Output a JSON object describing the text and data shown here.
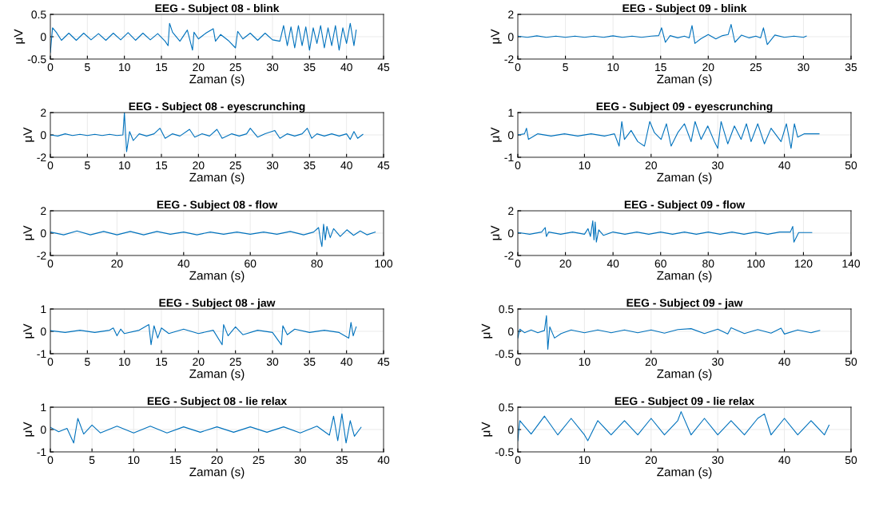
{
  "chart_data": [
    {
      "type": "line",
      "title": "EEG - Subject 08 - blink",
      "xlabel": "Zaman (s)",
      "ylabel": "μV",
      "color": "#0072bd",
      "grid": true,
      "xlim": [
        0,
        45
      ],
      "xticks": [
        0,
        5,
        10,
        15,
        20,
        25,
        30,
        35,
        40,
        45
      ],
      "ylim": [
        -0.5,
        0.5
      ],
      "yticks": [
        -0.5,
        0,
        0.5
      ],
      "x": [
        0,
        0.3,
        0.8,
        1.5,
        2.5,
        3.5,
        4.5,
        5.5,
        6.5,
        7.5,
        8.5,
        9.5,
        10.5,
        11.5,
        12.5,
        13.5,
        14.5,
        15.5,
        15.9,
        16.1,
        16.5,
        17.5,
        18.5,
        19.2,
        19.4,
        20,
        21,
        22,
        22.3,
        23,
        24,
        25,
        25.3,
        26,
        27,
        28,
        29,
        30,
        31,
        31.5,
        32,
        32.5,
        33,
        33.5,
        34,
        34.5,
        35,
        35.5,
        36,
        36.5,
        37,
        37.5,
        38,
        38.5,
        39,
        39.5,
        40,
        40.5,
        41,
        41.3
      ],
      "values": [
        -0.35,
        0.2,
        0.1,
        -0.08,
        0.08,
        -0.08,
        0.08,
        -0.07,
        0.07,
        -0.08,
        0.08,
        -0.07,
        0.09,
        -0.08,
        0.08,
        -0.07,
        0.07,
        -0.1,
        -0.2,
        0.3,
        0.1,
        -0.1,
        0.15,
        -0.3,
        0.1,
        -0.05,
        0.08,
        0.18,
        -0.1,
        0.05,
        -0.08,
        -0.25,
        0.12,
        -0.05,
        0.08,
        -0.08,
        0.08,
        -0.07,
        -0.1,
        0.25,
        -0.2,
        0.22,
        -0.25,
        0.25,
        -0.2,
        0.22,
        -0.3,
        0.2,
        -0.15,
        0.25,
        -0.25,
        0.2,
        -0.2,
        0.25,
        -0.3,
        0.2,
        -0.15,
        0.3,
        -0.2,
        0.15
      ]
    },
    {
      "type": "line",
      "title": "EEG - Subject 09 - blink",
      "xlabel": "Zaman (s)",
      "ylabel": "μV",
      "color": "#0072bd",
      "grid": true,
      "xlim": [
        0,
        35
      ],
      "xticks": [
        0,
        5,
        10,
        15,
        20,
        25,
        30,
        35
      ],
      "ylim": [
        -2,
        2
      ],
      "yticks": [
        -2,
        0,
        2
      ],
      "x": [
        0,
        1,
        2,
        3,
        4,
        5,
        6,
        7,
        8,
        9,
        10,
        11,
        12,
        13,
        14,
        14.8,
        15.1,
        15.5,
        16,
        16.8,
        17.5,
        18,
        18.3,
        18.6,
        19.2,
        20,
        20.8,
        21.5,
        22.1,
        22.4,
        22.8,
        23.5,
        24.3,
        25,
        25.5,
        25.8,
        26.2,
        27,
        28,
        29,
        30,
        30.3
      ],
      "values": [
        0.05,
        -0.05,
        0.08,
        -0.05,
        0.05,
        -0.05,
        0.05,
        -0.05,
        0.05,
        -0.05,
        0.08,
        -0.05,
        0.05,
        -0.05,
        0.05,
        0.1,
        0.8,
        -0.5,
        0.1,
        -0.1,
        0.05,
        -0.1,
        1.0,
        -0.6,
        -0.2,
        0.2,
        -0.2,
        0.1,
        0.2,
        1.1,
        -0.5,
        0.15,
        -0.1,
        0.05,
        -0.1,
        0.8,
        -0.7,
        0.15,
        -0.05,
        0.05,
        -0.05,
        0.05
      ]
    },
    {
      "type": "line",
      "title": "EEG - Subject 08 - eyescrunching",
      "xlabel": "Zaman (s)",
      "ylabel": "μV",
      "color": "#0072bd",
      "grid": true,
      "xlim": [
        0,
        45
      ],
      "xticks": [
        0,
        5,
        10,
        15,
        20,
        25,
        30,
        35,
        40,
        45
      ],
      "ylim": [
        -2,
        2
      ],
      "yticks": [
        -2,
        0,
        2
      ],
      "x": [
        0,
        1,
        2,
        3,
        4,
        5,
        6,
        7,
        8,
        9,
        9.8,
        10.0,
        10.3,
        10.7,
        11.2,
        12,
        13,
        14,
        14.8,
        15.5,
        16.5,
        17.5,
        18.8,
        19.5,
        20.5,
        21.5,
        22.5,
        23.2,
        24.5,
        25.5,
        26.5,
        27,
        28,
        29,
        30.3,
        31,
        32,
        33,
        34,
        34.7,
        35.3,
        36,
        37,
        38,
        39,
        40,
        40.5,
        41,
        41.5,
        42.2
      ],
      "values": [
        0,
        -0.1,
        0.1,
        -0.05,
        0.05,
        -0.05,
        0.05,
        -0.05,
        0.05,
        -0.05,
        0,
        2,
        -1.5,
        0.3,
        -0.5,
        0.1,
        -0.1,
        0.1,
        0.6,
        -0.3,
        0.1,
        -0.1,
        0.5,
        -0.2,
        0.1,
        -0.1,
        0.5,
        -0.3,
        0.1,
        -0.1,
        0.1,
        0.6,
        -0.2,
        0.1,
        0.4,
        -0.3,
        0.1,
        -0.1,
        0.1,
        0.6,
        -0.3,
        0.1,
        -0.1,
        0.1,
        -0.1,
        0.1,
        -0.4,
        0.3,
        -0.3,
        0.05
      ]
    },
    {
      "type": "line",
      "title": "EEG - Subject 09 - eyescrunching",
      "xlabel": "Zaman (s)",
      "ylabel": "μV",
      "color": "#0072bd",
      "grid": true,
      "xlim": [
        0,
        50
      ],
      "xticks": [
        0,
        10,
        20,
        30,
        40,
        50
      ],
      "ylim": [
        -1,
        1
      ],
      "yticks": [
        -1,
        0,
        1
      ],
      "x": [
        0,
        1,
        1.3,
        1.6,
        3,
        5,
        7,
        9,
        11,
        13,
        14.5,
        15.2,
        15.6,
        16,
        17,
        18,
        19,
        19.8,
        20.5,
        21.5,
        22.3,
        23,
        24,
        25,
        26,
        26.6,
        27.5,
        28.5,
        29.5,
        30,
        30.5,
        31.5,
        32.5,
        33.5,
        34.3,
        35,
        36,
        37,
        38,
        39.5,
        40.3,
        41,
        41.5,
        42,
        43,
        45.2
      ],
      "values": [
        0,
        0.05,
        0.3,
        -0.2,
        0.05,
        -0.05,
        0.05,
        -0.05,
        0.05,
        -0.05,
        0.05,
        -0.5,
        0.6,
        -0.2,
        0.2,
        -0.3,
        -0.5,
        0.6,
        0.1,
        -0.2,
        0.5,
        -0.5,
        0.1,
        0.5,
        -0.3,
        0.6,
        -0.2,
        0.4,
        -0.3,
        -0.6,
        0.6,
        -0.4,
        0.4,
        -0.2,
        0.5,
        -0.3,
        0.5,
        -0.4,
        0.3,
        -0.3,
        0.5,
        -0.6,
        0.5,
        -0.1,
        0.05,
        0.05
      ]
    },
    {
      "type": "line",
      "title": "EEG - Subject 08 - flow",
      "xlabel": "Zaman (s)",
      "ylabel": "μV",
      "color": "#0072bd",
      "grid": true,
      "xlim": [
        0,
        100
      ],
      "xticks": [
        0,
        20,
        40,
        60,
        80,
        100
      ],
      "ylim": [
        -2,
        2
      ],
      "yticks": [
        -2,
        0,
        2
      ],
      "x": [
        0,
        4,
        8,
        12,
        16,
        20,
        24,
        28,
        32,
        36,
        40,
        44,
        48,
        52,
        56,
        60,
        64,
        68,
        72,
        76,
        79,
        80.5,
        81,
        81.5,
        82,
        82.5,
        83,
        84,
        85,
        87,
        89,
        91,
        93,
        95,
        97.5
      ],
      "values": [
        0.1,
        -0.15,
        0.2,
        -0.15,
        0.15,
        -0.15,
        0.15,
        -0.15,
        0.15,
        -0.1,
        0.1,
        -0.15,
        0.1,
        -0.1,
        0.1,
        -0.1,
        0.1,
        -0.1,
        0.15,
        -0.15,
        0.1,
        0.5,
        -0.5,
        -1.2,
        0.8,
        -0.6,
        0.6,
        -0.4,
        0.4,
        -0.3,
        0.3,
        -0.2,
        0.2,
        -0.15,
        0.1
      ]
    },
    {
      "type": "line",
      "title": "EEG - Subject 09 - flow",
      "xlabel": "Zaman (s)",
      "ylabel": "μV",
      "color": "#0072bd",
      "grid": true,
      "xlim": [
        0,
        140
      ],
      "xticks": [
        0,
        20,
        40,
        60,
        80,
        100,
        120,
        140
      ],
      "ylim": [
        -2,
        2
      ],
      "yticks": [
        -2,
        0,
        2
      ],
      "x": [
        0,
        5,
        10,
        11.5,
        12,
        13,
        18,
        23,
        28,
        29.5,
        30.5,
        31.5,
        32,
        32.5,
        33,
        34,
        36,
        40,
        45,
        50,
        55,
        60,
        65,
        70,
        75,
        80,
        85,
        90,
        95,
        100,
        105,
        110,
        114.5,
        115.5,
        116,
        118,
        123.5
      ],
      "values": [
        0.05,
        -0.1,
        0.1,
        0.5,
        -0.3,
        0.1,
        -0.1,
        0.1,
        -0.1,
        0.4,
        -0.3,
        1.1,
        -0.6,
        1.0,
        -0.8,
        0.3,
        -0.2,
        0.1,
        -0.1,
        0.1,
        -0.1,
        0.1,
        -0.1,
        0.1,
        -0.1,
        0.1,
        -0.1,
        0.1,
        -0.1,
        0.1,
        -0.1,
        0.1,
        0.1,
        0.6,
        -0.8,
        0.05,
        0.05
      ]
    },
    {
      "type": "line",
      "title": "EEG - Subject 08 - jaw",
      "xlabel": "Zaman (s)",
      "ylabel": "μV",
      "color": "#0072bd",
      "grid": true,
      "xlim": [
        0,
        45
      ],
      "xticks": [
        0,
        5,
        10,
        15,
        20,
        25,
        30,
        35,
        40,
        45
      ],
      "ylim": [
        -1,
        1
      ],
      "yticks": [
        -1,
        0,
        1
      ],
      "x": [
        0,
        2,
        4,
        6,
        8,
        8.5,
        9,
        9.5,
        10,
        12,
        13.3,
        13.6,
        14,
        14.5,
        15,
        16,
        18,
        20,
        22,
        23.2,
        23.4,
        24,
        25,
        26,
        28,
        30,
        31.2,
        31.4,
        32,
        33,
        35,
        37,
        39,
        40.3,
        40.6,
        40.9,
        41.3
      ],
      "values": [
        0.03,
        -0.05,
        0.05,
        -0.05,
        0.05,
        0.15,
        -0.2,
        0.1,
        -0.1,
        0.05,
        0.3,
        -0.6,
        0.25,
        -0.3,
        0.15,
        -0.1,
        0.1,
        -0.1,
        0.05,
        -0.6,
        0.3,
        -0.2,
        0.2,
        -0.15,
        0.05,
        -0.05,
        -0.6,
        0.25,
        -0.15,
        0.1,
        -0.05,
        0.05,
        -0.05,
        -0.3,
        0.4,
        -0.2,
        0.2
      ]
    },
    {
      "type": "line",
      "title": "EEG - Subject 09 - jaw",
      "xlabel": "Zaman (s)",
      "ylabel": "μV",
      "color": "#0072bd",
      "grid": true,
      "xlim": [
        0,
        50
      ],
      "xticks": [
        0,
        10,
        20,
        30,
        40,
        50
      ],
      "ylim": [
        -0.5,
        0.5
      ],
      "yticks": [
        -0.5,
        0,
        0.5
      ],
      "x": [
        0,
        0.3,
        1,
        2,
        3,
        4,
        4.3,
        4.5,
        4.8,
        5.5,
        6.5,
        8,
        10,
        12,
        14,
        16,
        18,
        20,
        22,
        24,
        26,
        28,
        30,
        31.5,
        32,
        34,
        36,
        38,
        39.5,
        40,
        42,
        44,
        45.3
      ],
      "values": [
        -0.15,
        0.05,
        -0.03,
        0.03,
        -0.03,
        0.02,
        0.35,
        -0.4,
        0.1,
        -0.15,
        -0.05,
        0.03,
        -0.03,
        0.03,
        -0.03,
        0.03,
        -0.03,
        0.03,
        -0.04,
        0.04,
        0.06,
        -0.05,
        0.05,
        -0.06,
        0.08,
        -0.05,
        0.04,
        -0.04,
        0.07,
        -0.06,
        0.03,
        -0.03,
        0.02
      ]
    },
    {
      "type": "line",
      "title": "EEG - Subject 08 - lie relax",
      "xlabel": "Zaman (s)",
      "ylabel": "μV",
      "color": "#0072bd",
      "grid": true,
      "xlim": [
        0,
        40
      ],
      "xticks": [
        0,
        5,
        10,
        15,
        20,
        25,
        30,
        35,
        40
      ],
      "ylim": [
        -1,
        1
      ],
      "yticks": [
        -1,
        0,
        1
      ],
      "x": [
        0,
        1,
        2,
        2.8,
        3.3,
        4,
        5,
        6,
        8,
        10,
        12,
        14,
        16,
        18,
        20,
        22,
        24,
        26,
        28,
        30,
        32,
        33.5,
        34,
        34.5,
        35,
        35.5,
        36,
        36.5,
        37.3
      ],
      "values": [
        0.1,
        -0.1,
        0.05,
        -0.6,
        0.5,
        -0.2,
        0.2,
        -0.15,
        0.15,
        -0.15,
        0.15,
        -0.15,
        0.12,
        -0.12,
        0.12,
        -0.12,
        0.12,
        -0.12,
        0.12,
        -0.15,
        0.15,
        -0.25,
        0.6,
        -0.5,
        0.7,
        -0.6,
        0.4,
        -0.3,
        0.1
      ]
    },
    {
      "type": "line",
      "title": "EEG - Subject 09 - lie relax",
      "xlabel": "Zaman (s)",
      "ylabel": "μV",
      "color": "#0072bd",
      "grid": true,
      "xlim": [
        0,
        50
      ],
      "xticks": [
        0,
        10,
        20,
        30,
        40,
        50
      ],
      "ylim": [
        -0.5,
        0.5
      ],
      "yticks": [
        -0.5,
        0,
        0.5
      ],
      "x": [
        0,
        0.3,
        2,
        4,
        6,
        8,
        10,
        10.5,
        12,
        14,
        16,
        18,
        20,
        22,
        24,
        24.5,
        26,
        28,
        30,
        32,
        34,
        36,
        37,
        38,
        40,
        42,
        44,
        46,
        46.7
      ],
      "values": [
        -0.25,
        0.2,
        -0.1,
        0.3,
        -0.12,
        0.25,
        -0.12,
        -0.25,
        0.2,
        -0.12,
        0.2,
        -0.12,
        0.25,
        -0.12,
        0.2,
        0.4,
        -0.12,
        0.25,
        -0.12,
        0.2,
        -0.12,
        0.25,
        0.35,
        -0.12,
        0.25,
        -0.12,
        0.2,
        -0.12,
        0.1
      ]
    }
  ]
}
